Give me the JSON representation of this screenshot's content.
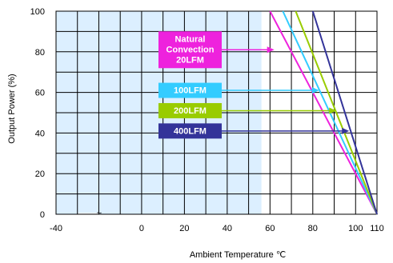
{
  "chart_data": {
    "type": "line",
    "title": "",
    "xlabel": "Ambient Temperature ℃",
    "ylabel": "Output Power (%)",
    "xlim": [
      -40,
      110
    ],
    "ylim": [
      0,
      100
    ],
    "x_ticks": [
      -40,
      0,
      20,
      40,
      60,
      80,
      100,
      110
    ],
    "x_tick_labels": [
      "-40",
      "0",
      "20",
      "40",
      "60",
      "80",
      "100",
      "110"
    ],
    "y_ticks": [
      0,
      20,
      40,
      60,
      80,
      100
    ],
    "y_tick_labels": [
      "0",
      "20",
      "40",
      "60",
      "80",
      "100"
    ],
    "axis_break_marker": "~",
    "grid": true,
    "shaded_region": {
      "x": [
        -40,
        56
      ],
      "y": [
        0,
        100
      ],
      "color": "#dcefff"
    },
    "series": [
      {
        "name": "Natural Convection 20LFM",
        "label_lines": [
          "Natural",
          "Convection",
          "20LFM"
        ],
        "color": "#ee22dd",
        "x": [
          60,
          110
        ],
        "y": [
          100,
          0
        ],
        "arrow_y": 81,
        "arrow_to_x": 62
      },
      {
        "name": "100LFM",
        "label_lines": [
          "100LFM"
        ],
        "color": "#33ccff",
        "x": [
          66,
          110
        ],
        "y": [
          100,
          0
        ],
        "arrow_y": 61,
        "arrow_to_x": 83
      },
      {
        "name": "200LFM",
        "label_lines": [
          "200LFM"
        ],
        "color": "#99cc00",
        "x": [
          72,
          110
        ],
        "y": [
          100,
          0
        ],
        "arrow_y": 51,
        "arrow_to_x": 91
      },
      {
        "name": "400LFM",
        "label_lines": [
          "400LFM"
        ],
        "color": "#333399",
        "x": [
          80,
          110
        ],
        "y": [
          100,
          0
        ],
        "arrow_y": 41,
        "arrow_to_x": 97
      }
    ]
  }
}
